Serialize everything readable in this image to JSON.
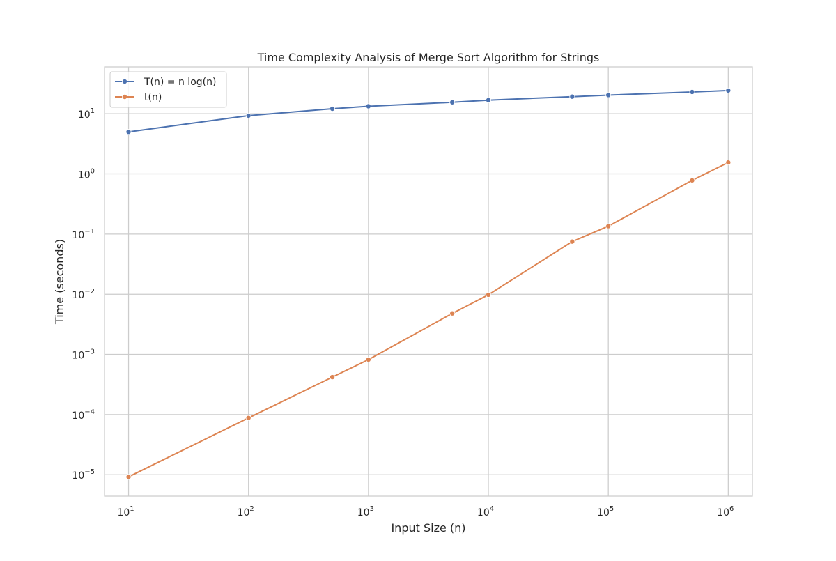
{
  "chart_data": {
    "type": "line",
    "title": "Time Complexity Analysis of Merge Sort Algorithm for Strings",
    "xlabel": "Input Size (n)",
    "ylabel": "Time (seconds)",
    "xscale": "log",
    "yscale": "log",
    "xlim": [
      6.3,
      1590000
    ],
    "ylim": [
      4.4e-06,
      60
    ],
    "xticks": [
      {
        "base": "10",
        "exp": "1",
        "value": 10
      },
      {
        "base": "10",
        "exp": "2",
        "value": 100
      },
      {
        "base": "10",
        "exp": "3",
        "value": 1000
      },
      {
        "base": "10",
        "exp": "4",
        "value": 10000
      },
      {
        "base": "10",
        "exp": "5",
        "value": 100000
      },
      {
        "base": "10",
        "exp": "6",
        "value": 1000000
      }
    ],
    "yticks": [
      {
        "base": "10",
        "exp": "−5",
        "value": 1e-05
      },
      {
        "base": "10",
        "exp": "−4",
        "value": 0.0001
      },
      {
        "base": "10",
        "exp": "−3",
        "value": 0.001
      },
      {
        "base": "10",
        "exp": "−2",
        "value": 0.01
      },
      {
        "base": "10",
        "exp": "−1",
        "value": 0.1
      },
      {
        "base": "10",
        "exp": "0",
        "value": 1
      },
      {
        "base": "10",
        "exp": "1",
        "value": 10
      }
    ],
    "grid": true,
    "legend_position": "top-left",
    "x": [
      10,
      100,
      500,
      1000,
      5000,
      10000,
      50000,
      100000,
      500000,
      1000000
    ],
    "series": [
      {
        "name": "T(n) = n log(n)",
        "color": "#4c72b0",
        "values": [
          5.0,
          9.3,
          12.1,
          13.3,
          15.5,
          16.8,
          19.2,
          20.4,
          23.0,
          24.3
        ]
      },
      {
        "name": "t(n)",
        "color": "#dd8452",
        "values": [
          9.2e-06,
          8.8e-05,
          0.00042,
          0.00082,
          0.0048,
          0.0098,
          0.075,
          0.135,
          0.78,
          1.55
        ]
      }
    ]
  }
}
